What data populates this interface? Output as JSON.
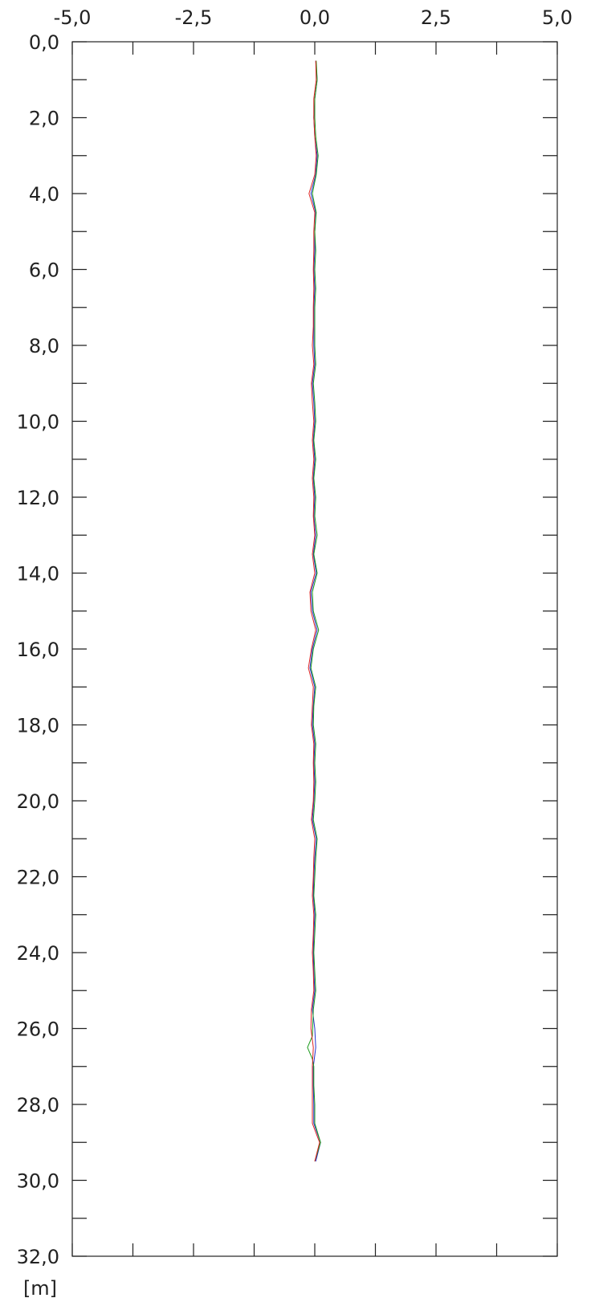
{
  "chart_data": {
    "type": "line",
    "orientation": "depth-profile",
    "xlim": [
      -5,
      5
    ],
    "ylim": [
      0,
      32
    ],
    "y_inverted": true,
    "x_ticks": [
      "-5,0",
      "-2,5",
      "0,0",
      "2,5",
      "5,0"
    ],
    "x_tick_values": [
      -5,
      -2.5,
      0,
      2.5,
      5
    ],
    "x_minor_ticks": [
      -3.75,
      -1.25,
      1.25,
      3.75
    ],
    "y_ticks": [
      "0,0",
      "2,0",
      "4,0",
      "6,0",
      "8,0",
      "10,0",
      "12,0",
      "14,0",
      "16,0",
      "18,0",
      "20,0",
      "22,0",
      "24,0",
      "26,0",
      "28,0",
      "30,0",
      "32,0"
    ],
    "y_tick_values": [
      0,
      2,
      4,
      6,
      8,
      10,
      12,
      14,
      16,
      18,
      20,
      22,
      24,
      26,
      28,
      30,
      32
    ],
    "y_minor_ticks": [
      1,
      3,
      5,
      7,
      9,
      11,
      13,
      15,
      17,
      19,
      21,
      23,
      25,
      27,
      29,
      31
    ],
    "ylabel": "[m]",
    "grid": false,
    "legend": false,
    "series": [
      {
        "color": "#2233cc",
        "points": [
          [
            0.02,
            0.5
          ],
          [
            0.05,
            1.0
          ],
          [
            0.0,
            1.5
          ],
          [
            -0.02,
            2.0
          ],
          [
            0.0,
            2.5
          ],
          [
            0.05,
            3.0
          ],
          [
            0.02,
            3.5
          ],
          [
            -0.08,
            4.0
          ],
          [
            0.02,
            4.5
          ],
          [
            0.0,
            5.0
          ],
          [
            0.0,
            5.5
          ],
          [
            -0.02,
            6.0
          ],
          [
            0.0,
            6.5
          ],
          [
            -0.02,
            7.0
          ],
          [
            -0.02,
            7.5
          ],
          [
            -0.02,
            8.0
          ],
          [
            0.0,
            8.5
          ],
          [
            -0.05,
            9.0
          ],
          [
            -0.02,
            9.5
          ],
          [
            0.0,
            10.0
          ],
          [
            -0.03,
            10.5
          ],
          [
            0.0,
            11.0
          ],
          [
            -0.03,
            11.5
          ],
          [
            0.0,
            12.0
          ],
          [
            -0.02,
            12.5
          ],
          [
            0.02,
            13.0
          ],
          [
            -0.03,
            13.5
          ],
          [
            0.03,
            14.0
          ],
          [
            -0.08,
            14.5
          ],
          [
            -0.05,
            15.0
          ],
          [
            0.05,
            15.5
          ],
          [
            -0.05,
            16.0
          ],
          [
            -0.1,
            16.5
          ],
          [
            0.0,
            17.0
          ],
          [
            -0.03,
            17.5
          ],
          [
            -0.05,
            18.0
          ],
          [
            0.0,
            18.5
          ],
          [
            -0.02,
            19.0
          ],
          [
            0.0,
            19.5
          ],
          [
            -0.02,
            20.0
          ],
          [
            -0.05,
            20.5
          ],
          [
            0.03,
            21.0
          ],
          [
            0.0,
            21.5
          ],
          [
            -0.02,
            22.0
          ],
          [
            -0.03,
            22.5
          ],
          [
            0.0,
            23.0
          ],
          [
            -0.02,
            23.5
          ],
          [
            -0.03,
            24.0
          ],
          [
            -0.02,
            24.5
          ],
          [
            0.0,
            25.0
          ],
          [
            -0.05,
            25.5
          ],
          [
            0.0,
            26.0
          ],
          [
            0.02,
            26.5
          ],
          [
            -0.03,
            27.0
          ],
          [
            -0.03,
            27.5
          ],
          [
            -0.02,
            28.0
          ],
          [
            -0.02,
            28.5
          ],
          [
            0.12,
            29.0
          ],
          [
            0.02,
            29.5
          ]
        ]
      },
      {
        "color": "#1a9a1a",
        "points": [
          [
            0.03,
            0.5
          ],
          [
            0.05,
            1.0
          ],
          [
            0.0,
            1.5
          ],
          [
            0.0,
            2.0
          ],
          [
            0.02,
            2.5
          ],
          [
            0.07,
            3.0
          ],
          [
            0.03,
            3.5
          ],
          [
            -0.05,
            4.0
          ],
          [
            0.03,
            4.5
          ],
          [
            0.0,
            5.0
          ],
          [
            0.02,
            5.5
          ],
          [
            0.0,
            6.0
          ],
          [
            0.02,
            6.5
          ],
          [
            0.0,
            7.0
          ],
          [
            0.0,
            7.5
          ],
          [
            0.0,
            8.0
          ],
          [
            0.02,
            8.5
          ],
          [
            -0.03,
            9.0
          ],
          [
            0.0,
            9.5
          ],
          [
            0.02,
            10.0
          ],
          [
            -0.02,
            10.5
          ],
          [
            0.02,
            11.0
          ],
          [
            -0.02,
            11.5
          ],
          [
            0.02,
            12.0
          ],
          [
            0.0,
            12.5
          ],
          [
            0.05,
            13.0
          ],
          [
            -0.02,
            13.5
          ],
          [
            0.05,
            14.0
          ],
          [
            -0.05,
            14.5
          ],
          [
            -0.03,
            15.0
          ],
          [
            0.08,
            15.5
          ],
          [
            -0.03,
            16.0
          ],
          [
            -0.08,
            16.5
          ],
          [
            0.02,
            17.0
          ],
          [
            -0.02,
            17.5
          ],
          [
            -0.03,
            18.0
          ],
          [
            0.02,
            18.5
          ],
          [
            0.0,
            19.0
          ],
          [
            0.02,
            19.5
          ],
          [
            0.0,
            20.0
          ],
          [
            -0.03,
            20.5
          ],
          [
            0.05,
            21.0
          ],
          [
            0.02,
            21.5
          ],
          [
            0.0,
            22.0
          ],
          [
            -0.02,
            22.5
          ],
          [
            0.02,
            23.0
          ],
          [
            0.0,
            23.5
          ],
          [
            -0.02,
            24.0
          ],
          [
            0.0,
            24.5
          ],
          [
            0.02,
            25.0
          ],
          [
            -0.03,
            25.5
          ],
          [
            -0.05,
            26.2
          ],
          [
            -0.15,
            26.5
          ],
          [
            -0.05,
            26.8
          ],
          [
            -0.02,
            27.0
          ],
          [
            -0.02,
            27.5
          ],
          [
            0.0,
            28.0
          ],
          [
            0.0,
            28.5
          ],
          [
            0.12,
            29.0
          ],
          [
            0.0,
            29.5
          ]
        ]
      },
      {
        "color": "#dd2222",
        "points": [
          [
            0.02,
            0.5
          ],
          [
            0.03,
            1.0
          ],
          [
            -0.02,
            1.5
          ],
          [
            -0.02,
            2.0
          ],
          [
            0.0,
            2.5
          ],
          [
            0.03,
            3.0
          ],
          [
            0.0,
            3.5
          ],
          [
            -0.12,
            4.0
          ],
          [
            0.0,
            4.5
          ],
          [
            -0.02,
            5.0
          ],
          [
            -0.02,
            5.5
          ],
          [
            -0.03,
            6.0
          ],
          [
            -0.02,
            6.5
          ],
          [
            -0.03,
            7.0
          ],
          [
            -0.03,
            7.5
          ],
          [
            -0.05,
            8.0
          ],
          [
            -0.02,
            8.5
          ],
          [
            -0.07,
            9.0
          ],
          [
            -0.05,
            9.5
          ],
          [
            -0.02,
            10.0
          ],
          [
            -0.05,
            10.5
          ],
          [
            -0.02,
            11.0
          ],
          [
            -0.05,
            11.5
          ],
          [
            -0.02,
            12.0
          ],
          [
            -0.03,
            12.5
          ],
          [
            0.0,
            13.0
          ],
          [
            -0.05,
            13.5
          ],
          [
            0.0,
            14.0
          ],
          [
            -0.1,
            14.5
          ],
          [
            -0.08,
            15.0
          ],
          [
            0.02,
            15.5
          ],
          [
            -0.07,
            16.0
          ],
          [
            -0.13,
            16.5
          ],
          [
            -0.03,
            17.0
          ],
          [
            -0.05,
            17.5
          ],
          [
            -0.07,
            18.0
          ],
          [
            -0.02,
            18.5
          ],
          [
            -0.03,
            19.0
          ],
          [
            -0.02,
            19.5
          ],
          [
            -0.03,
            20.0
          ],
          [
            -0.07,
            20.5
          ],
          [
            0.0,
            21.0
          ],
          [
            -0.02,
            21.5
          ],
          [
            -0.03,
            22.0
          ],
          [
            -0.05,
            22.5
          ],
          [
            -0.02,
            23.0
          ],
          [
            -0.03,
            23.5
          ],
          [
            -0.05,
            24.0
          ],
          [
            -0.03,
            24.5
          ],
          [
            -0.02,
            25.0
          ],
          [
            -0.07,
            25.5
          ],
          [
            -0.08,
            26.0
          ],
          [
            -0.03,
            26.5
          ],
          [
            -0.05,
            27.0
          ],
          [
            -0.05,
            27.5
          ],
          [
            -0.05,
            28.0
          ],
          [
            -0.05,
            28.5
          ],
          [
            0.1,
            29.0
          ],
          [
            0.0,
            29.5
          ]
        ]
      }
    ]
  }
}
